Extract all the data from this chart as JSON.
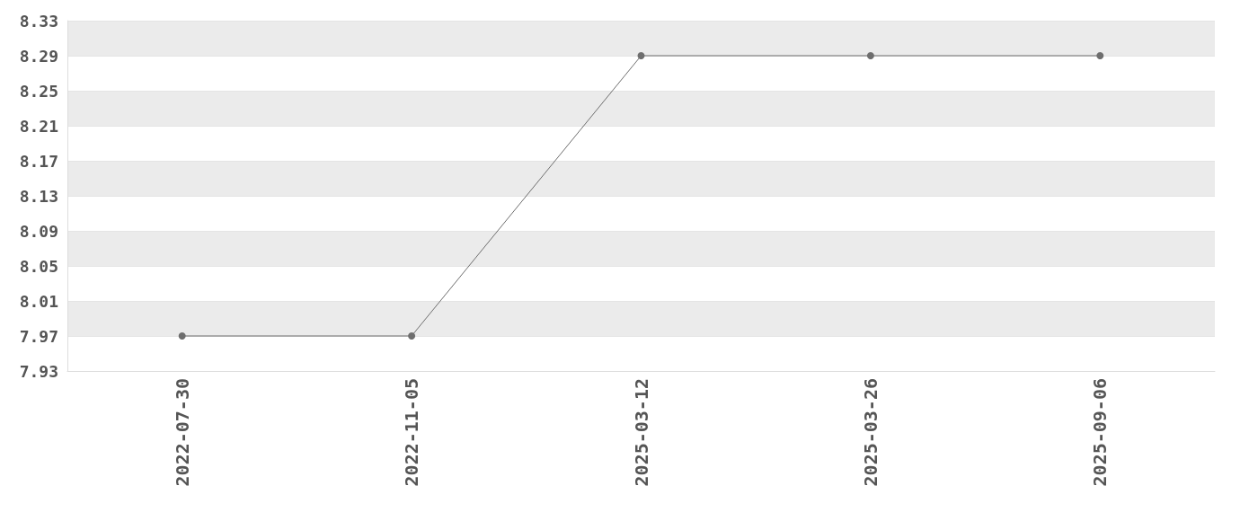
{
  "chart_data": {
    "type": "line",
    "categories": [
      "2022-07-30",
      "2022-11-05",
      "2025-03-12",
      "2025-03-26",
      "2025-09-06"
    ],
    "series": [
      {
        "color": "#6e6e6e",
        "values": [
          7.97,
          7.97,
          8.29,
          8.29,
          8.29
        ]
      }
    ],
    "ylim": [
      7.93,
      8.33
    ],
    "yticks": [
      7.93,
      7.97,
      8.01,
      8.05,
      8.09,
      8.13,
      8.17,
      8.21,
      8.25,
      8.29,
      8.33
    ],
    "grid": "y",
    "marker": "circle",
    "line_style": "solid"
  }
}
